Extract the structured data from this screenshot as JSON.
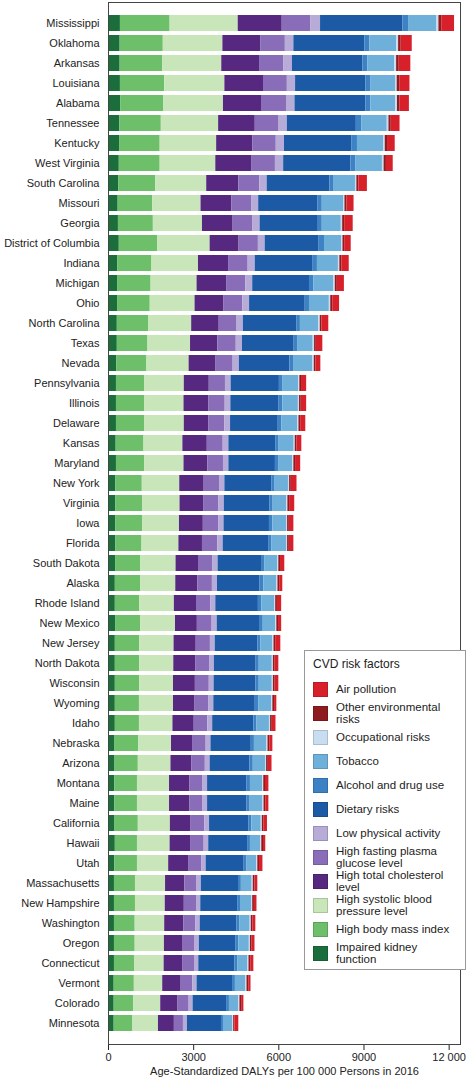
{
  "chart_data": {
    "type": "bar",
    "orientation": "horizontal",
    "stacked": true,
    "grid": false,
    "data_labels": false,
    "legend": "bottom-right",
    "legend_title": "CVD risk factors",
    "x_label": "Age-Standardized DALYs per 100 000 Persons in 2016",
    "xlim": [
      0,
      12400
    ],
    "xticks": [
      0,
      3000,
      6000,
      9000,
      {
        "value": 12000,
        "label": "12 000"
      }
    ],
    "categories": [
      "Mississippi",
      "Oklahoma",
      "Arkansas",
      "Louisiana",
      "Alabama",
      "Tennessee",
      "Kentucky",
      "West Virginia",
      "South Carolina",
      "Missouri",
      "Georgia",
      "District of Columbia",
      "Indiana",
      "Michigan",
      "Ohio",
      "North Carolina",
      "Texas",
      "Nevada",
      "Pennsylvania",
      "Illinois",
      "Delaware",
      "Kansas",
      "Maryland",
      "New York",
      "Virginia",
      "Iowa",
      "Florida",
      "South Dakota",
      "Alaska",
      "Rhode Island",
      "New Mexico",
      "New Jersey",
      "North Dakota",
      "Wisconsin",
      "Wyoming",
      "Idaho",
      "Nebraska",
      "Arizona",
      "Montana",
      "Maine",
      "California",
      "Hawaii",
      "Utah",
      "Massachusetts",
      "New Hampshire",
      "Washington",
      "Oregon",
      "Connecticut",
      "Vermont",
      "Colorado",
      "Minnesota"
    ],
    "series": [
      {
        "name": "Impaired kidney function",
        "color": "#1b6e3c",
        "values": [
          420,
          410,
          410,
          420,
          430,
          400,
          390,
          380,
          360,
          340,
          350,
          380,
          330,
          320,
          320,
          310,
          310,
          290,
          280,
          280,
          280,
          270,
          280,
          260,
          260,
          260,
          260,
          250,
          240,
          240,
          250,
          240,
          240,
          240,
          240,
          240,
          230,
          230,
          220,
          220,
          230,
          240,
          220,
          210,
          210,
          210,
          210,
          210,
          200,
          200,
          200
        ]
      },
      {
        "name": "High body mass index",
        "color": "#6dbf6a",
        "values": [
          1750,
          1520,
          1500,
          1560,
          1520,
          1460,
          1430,
          1440,
          1300,
          1220,
          1230,
          1350,
          1200,
          1180,
          1150,
          1100,
          1080,
          1050,
          990,
          990,
          990,
          980,
          1000,
          930,
          940,
          940,
          920,
          890,
          900,
          860,
          880,
          860,
          860,
          860,
          850,
          850,
          830,
          820,
          800,
          800,
          820,
          780,
          800,
          740,
          740,
          730,
          730,
          720,
          710,
          680,
          660
        ]
      },
      {
        "name": "High systolic blood pressure level",
        "color": "#c8e6b9",
        "values": [
          2400,
          2100,
          2080,
          2120,
          2100,
          2020,
          1990,
          1960,
          1800,
          1700,
          1730,
          1850,
          1640,
          1620,
          1580,
          1520,
          1500,
          1500,
          1400,
          1390,
          1400,
          1370,
          1380,
          1320,
          1320,
          1300,
          1300,
          1240,
          1230,
          1220,
          1230,
          1210,
          1200,
          1190,
          1200,
          1180,
          1160,
          1150,
          1130,
          1130,
          1130,
          1150,
          1100,
          1060,
          1050,
          1040,
          1030,
          1030,
          1000,
          960,
          900
        ]
      },
      {
        "name": "High total cholesterol level",
        "color": "#56287f",
        "values": [
          1550,
          1330,
          1330,
          1360,
          1340,
          1290,
          1270,
          1260,
          1130,
          1080,
          1080,
          1020,
          1060,
          1040,
          1020,
          970,
          960,
          950,
          880,
          880,
          870,
          860,
          840,
          860,
          830,
          840,
          830,
          790,
          780,
          780,
          770,
          780,
          770,
          770,
          760,
          750,
          740,
          730,
          720,
          720,
          730,
          720,
          700,
          680,
          670,
          670,
          660,
          650,
          650,
          610,
          560
        ]
      },
      {
        "name": "High fasting plasma glucose level",
        "color": "#8a6db8",
        "values": [
          1000,
          870,
          860,
          840,
          880,
          840,
          830,
          840,
          740,
          700,
          700,
          680,
          690,
          680,
          660,
          630,
          650,
          600,
          570,
          570,
          560,
          560,
          550,
          540,
          540,
          540,
          540,
          510,
          510,
          500,
          520,
          500,
          490,
          490,
          490,
          480,
          480,
          480,
          460,
          460,
          480,
          480,
          460,
          430,
          430,
          430,
          420,
          420,
          410,
          390,
          320
        ]
      },
      {
        "name": "Low physical activity",
        "color": "#b7abd8",
        "values": [
          350,
          300,
          300,
          290,
          300,
          290,
          290,
          290,
          260,
          250,
          250,
          240,
          250,
          240,
          240,
          220,
          220,
          220,
          200,
          200,
          200,
          200,
          190,
          190,
          190,
          190,
          190,
          180,
          180,
          180,
          180,
          170,
          170,
          170,
          170,
          170,
          170,
          170,
          160,
          160,
          170,
          160,
          160,
          150,
          150,
          150,
          150,
          150,
          150,
          140,
          140
        ]
      },
      {
        "name": "Dietary risks",
        "color": "#1c5aa6",
        "values": [
          2900,
          2500,
          2480,
          2480,
          2500,
          2430,
          2380,
          2370,
          2210,
          2080,
          2050,
          1900,
          2040,
          2000,
          1960,
          1880,
          1820,
          1780,
          1700,
          1700,
          1680,
          1650,
          1640,
          1650,
          1600,
          1600,
          1600,
          1530,
          1500,
          1500,
          1490,
          1500,
          1470,
          1470,
          1460,
          1450,
          1420,
          1400,
          1390,
          1390,
          1380,
          1370,
          1340,
          1310,
          1300,
          1290,
          1280,
          1270,
          1250,
          1180,
          1200
        ]
      },
      {
        "name": "Alcohol and drug use",
        "color": "#3d82c4",
        "values": [
          200,
          180,
          180,
          180,
          170,
          190,
          190,
          180,
          150,
          160,
          140,
          190,
          150,
          150,
          150,
          130,
          120,
          150,
          130,
          130,
          130,
          120,
          130,
          120,
          120,
          120,
          120,
          110,
          130,
          120,
          130,
          110,
          110,
          120,
          120,
          110,
          110,
          120,
          120,
          110,
          110,
          100,
          100,
          100,
          100,
          100,
          110,
          100,
          100,
          100,
          70
        ]
      },
      {
        "name": "Tobacco",
        "color": "#6fb0da",
        "values": [
          1000,
          940,
          940,
          860,
          880,
          900,
          920,
          930,
          750,
          750,
          670,
          610,
          740,
          710,
          700,
          650,
          550,
          660,
          550,
          550,
          560,
          530,
          480,
          470,
          480,
          480,
          510,
          460,
          460,
          450,
          440,
          420,
          460,
          460,
          460,
          440,
          440,
          430,
          430,
          450,
          330,
          360,
          340,
          380,
          390,
          370,
          370,
          360,
          370,
          330,
          320
        ]
      },
      {
        "name": "Occupational risks",
        "color": "#c9ddf0",
        "values": [
          70,
          70,
          70,
          60,
          60,
          60,
          60,
          60,
          50,
          50,
          50,
          40,
          50,
          50,
          50,
          50,
          50,
          50,
          40,
          40,
          40,
          40,
          40,
          40,
          40,
          40,
          40,
          40,
          40,
          40,
          40,
          40,
          40,
          40,
          40,
          40,
          40,
          40,
          40,
          40,
          40,
          40,
          40,
          40,
          40,
          40,
          40,
          40,
          40,
          40,
          40
        ]
      },
      {
        "name": "Other environmental risks",
        "color": "#8e1b1f",
        "values": [
          100,
          90,
          90,
          90,
          90,
          80,
          80,
          80,
          70,
          70,
          70,
          60,
          70,
          70,
          70,
          60,
          60,
          60,
          60,
          60,
          60,
          60,
          60,
          60,
          60,
          60,
          60,
          60,
          60,
          60,
          60,
          60,
          60,
          60,
          60,
          60,
          60,
          60,
          60,
          60,
          60,
          60,
          60,
          60,
          60,
          60,
          60,
          60,
          60,
          60,
          40
        ]
      },
      {
        "name": "Air pollution",
        "color": "#d7202a",
        "values": [
          450,
          390,
          410,
          360,
          330,
          310,
          270,
          240,
          300,
          250,
          300,
          230,
          260,
          250,
          240,
          240,
          230,
          170,
          180,
          190,
          180,
          170,
          180,
          200,
          180,
          160,
          160,
          150,
          110,
          150,
          110,
          180,
          130,
          130,
          80,
          130,
          110,
          130,
          120,
          110,
          120,
          80,
          120,
          100,
          90,
          100,
          100,
          110,
          80,
          80,
          140
        ]
      }
    ]
  }
}
